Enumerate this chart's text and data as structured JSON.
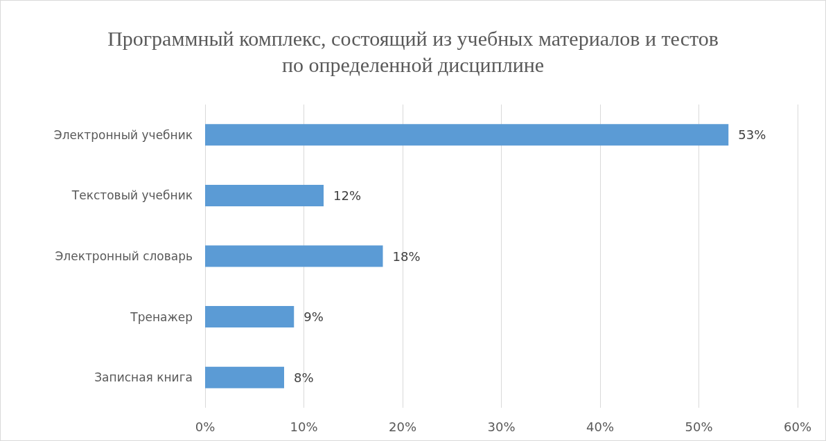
{
  "chart_data": {
    "type": "bar",
    "orientation": "horizontal",
    "title": "Программный комплекс, состоящий из учебных материалов и тестов\nпо определенной дисциплине",
    "categories": [
      "Электронный учебник",
      "Текстовый учебник",
      "Электронный словарь",
      "Тренажер",
      "Записная книга"
    ],
    "values": [
      53,
      12,
      18,
      9,
      8
    ],
    "value_labels": [
      "53%",
      "12%",
      "18%",
      "9%",
      "8%"
    ],
    "color": "#5b9bd5",
    "xlim": [
      0,
      60
    ],
    "xticks": [
      {
        "value": 0,
        "label": "0%"
      },
      {
        "value": 10,
        "label": "10%"
      },
      {
        "value": 20,
        "label": "20%"
      },
      {
        "value": 30,
        "label": "30%"
      },
      {
        "value": 40,
        "label": "40%"
      },
      {
        "value": 50,
        "label": "50%"
      },
      {
        "value": 60,
        "label": "60%"
      }
    ],
    "grid": "x"
  }
}
